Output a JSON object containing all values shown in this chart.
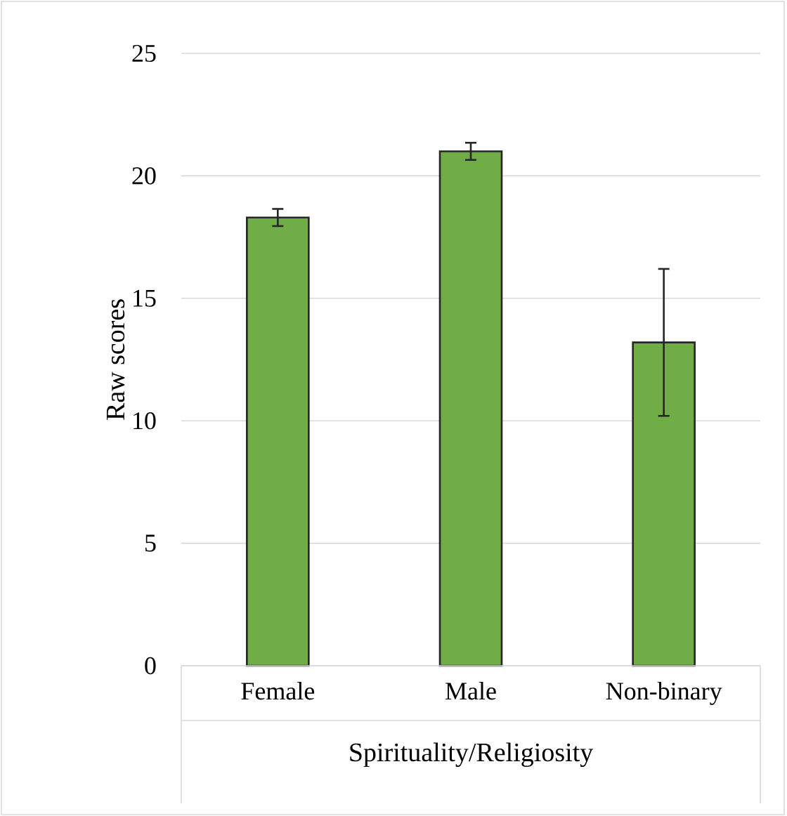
{
  "chart_data": {
    "type": "bar",
    "categories": [
      "Female",
      "Male",
      "Non-binary"
    ],
    "values": [
      18.3,
      21.0,
      13.2
    ],
    "errors": [
      0.35,
      0.35,
      3.0
    ],
    "color": "#70ad47",
    "xlabel": "Spirituality/Religiosity",
    "ylabel": "Raw scores",
    "ylim": [
      0,
      25
    ],
    "yticks": [
      0,
      5,
      10,
      15,
      20,
      25
    ],
    "grid": "y"
  }
}
